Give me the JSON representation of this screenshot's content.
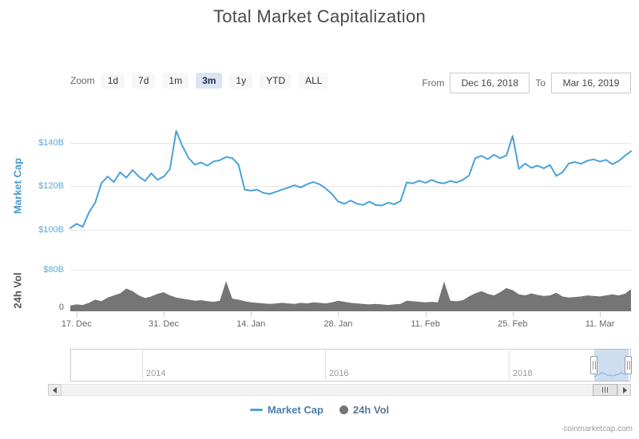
{
  "title": "Total Market Capitalization",
  "controls": {
    "zoom_label": "Zoom",
    "zoom_buttons": [
      "1d",
      "7d",
      "1m",
      "3m",
      "1y",
      "YTD",
      "ALL"
    ],
    "zoom_selected": "3m",
    "from_label": "From",
    "from_value": "Dec 16, 2018",
    "to_label": "To",
    "to_value": "Mar 16, 2019"
  },
  "chart_data": {
    "type": "line",
    "title": "Total Market Capitalization",
    "x_start": "2018-12-16",
    "x_interval_days": 1,
    "x_tick_day_indices": [
      1,
      15,
      29,
      43,
      57,
      71,
      85
    ],
    "x_tick_labels": [
      "17. Dec",
      "31. Dec",
      "14. Jan",
      "28. Jan",
      "11. Feb",
      "25. Feb",
      "11. Mar"
    ],
    "grid": true,
    "series": [
      {
        "name": "Market Cap",
        "type": "line",
        "color": "#4aa2d9",
        "axis_title": "Market Cap",
        "axis_ticks": [
          "$100B",
          "$120B",
          "$140B"
        ],
        "axis_range_billions": [
          100,
          140
        ],
        "values_billions": [
          100.8,
          102.8,
          101.4,
          108.0,
          112.5,
          121.5,
          124.5,
          122.0,
          126.5,
          124.0,
          127.5,
          124.5,
          122.5,
          126.0,
          123.0,
          124.5,
          128.0,
          145.5,
          138.5,
          133.0,
          130.0,
          131.0,
          129.5,
          131.5,
          132.0,
          133.5,
          133.0,
          130.0,
          118.5,
          118.0,
          118.5,
          117.0,
          116.5,
          117.5,
          118.5,
          119.5,
          120.5,
          119.5,
          121.0,
          122.0,
          121.0,
          119.0,
          116.5,
          113.0,
          112.0,
          113.5,
          112.0,
          111.5,
          113.0,
          111.5,
          111.2,
          112.5,
          111.8,
          113.2,
          121.8,
          121.4,
          122.6,
          121.6,
          123.0,
          121.8,
          121.4,
          122.5,
          121.8,
          123.0,
          125.0,
          133.0,
          134.0,
          132.5,
          134.5,
          133.0,
          134.2,
          143.2,
          128.0,
          130.5,
          128.5,
          129.5,
          128.3,
          129.8,
          124.8,
          126.5,
          130.5,
          131.2,
          130.4,
          131.8,
          132.4,
          131.4,
          132.2,
          130.2,
          131.6,
          134.0,
          136.2
        ]
      },
      {
        "name": "24h Vol",
        "type": "area",
        "color": "#757575",
        "axis_title": "24h Vol",
        "axis_ticks": [
          "0",
          "$80B"
        ],
        "axis_range_billions": [
          0,
          80
        ],
        "values_billions": [
          11,
          13,
          12,
          16,
          22,
          19,
          26,
          30,
          34,
          43,
          38,
          30,
          25,
          28,
          33,
          36,
          30,
          26,
          24,
          22,
          20,
          21,
          19,
          18,
          20,
          57,
          24,
          22,
          19,
          17,
          16,
          15,
          14,
          15,
          16,
          15,
          14,
          16,
          15,
          17,
          16,
          15,
          17,
          20,
          18,
          16,
          15,
          14,
          13,
          14,
          13,
          12,
          13,
          14,
          20,
          19,
          18,
          17,
          18,
          17,
          56,
          20,
          19,
          21,
          28,
          34,
          38,
          33,
          30,
          36,
          44,
          40,
          32,
          30,
          34,
          31,
          29,
          30,
          35,
          28,
          26,
          27,
          28,
          30,
          29,
          28,
          30,
          32,
          30,
          33,
          42
        ]
      }
    ],
    "navigator": {
      "year_labels": [
        "2014",
        "2016",
        "2018"
      ],
      "selected_range": [
        "Dec 16, 2018",
        "Mar 16, 2019"
      ],
      "mini_values_billions": [
        101,
        112,
        124,
        127,
        145,
        131,
        133,
        118,
        117,
        121,
        112,
        113,
        122,
        123,
        133,
        143,
        129,
        125,
        131,
        136
      ]
    }
  },
  "legend": {
    "items": [
      {
        "label": "Market Cap",
        "marker": "line",
        "color": "#4aa2d9",
        "text_color": "#4d7ea9"
      },
      {
        "label": "24h Vol",
        "marker": "circle",
        "color": "#757575",
        "text_color": "#5b7896"
      }
    ]
  },
  "credit": "coinmarketcap.com"
}
